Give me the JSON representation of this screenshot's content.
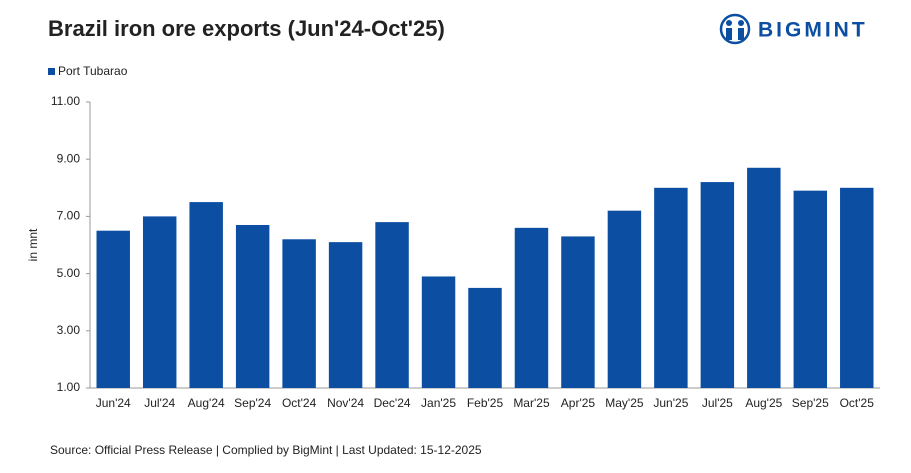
{
  "chart_data": {
    "type": "bar",
    "title": "Brazil iron ore exports (Jun'24-Oct'25)",
    "brand": "BIGMINT",
    "y_label": "in mnt",
    "source": "Source:  Official Press Release | Complied  by  BigMint | Last Updated:  15-12-2025",
    "categories": [
      "Jun'24",
      "Jul'24",
      "Aug'24",
      "Sep'24",
      "Oct'24",
      "Nov'24",
      "Dec'24",
      "Jan'25",
      "Feb'25",
      "Mar'25",
      "Apr'25",
      "May'25",
      "Jun'25",
      "Jul'25",
      "Aug'25",
      "Sep'25",
      "Oct'25"
    ],
    "series": [
      {
        "name": "Port Tubarao",
        "color": "#0b4ea2",
        "values": [
          6.5,
          7.0,
          7.5,
          6.7,
          6.2,
          6.1,
          6.8,
          4.9,
          4.5,
          6.6,
          6.3,
          7.2,
          8.0,
          8.2,
          8.7,
          7.9,
          8.0
        ]
      }
    ],
    "ylim": [
      1,
      11
    ],
    "yticks": [
      {
        "value": 1,
        "label": "1.00"
      },
      {
        "value": 3,
        "label": "3.00"
      },
      {
        "value": 5,
        "label": "5.00"
      },
      {
        "value": 7,
        "label": "7.00"
      },
      {
        "value": 9,
        "label": "9.00"
      },
      {
        "value": 11,
        "label": "11.00"
      }
    ],
    "grid": false
  }
}
